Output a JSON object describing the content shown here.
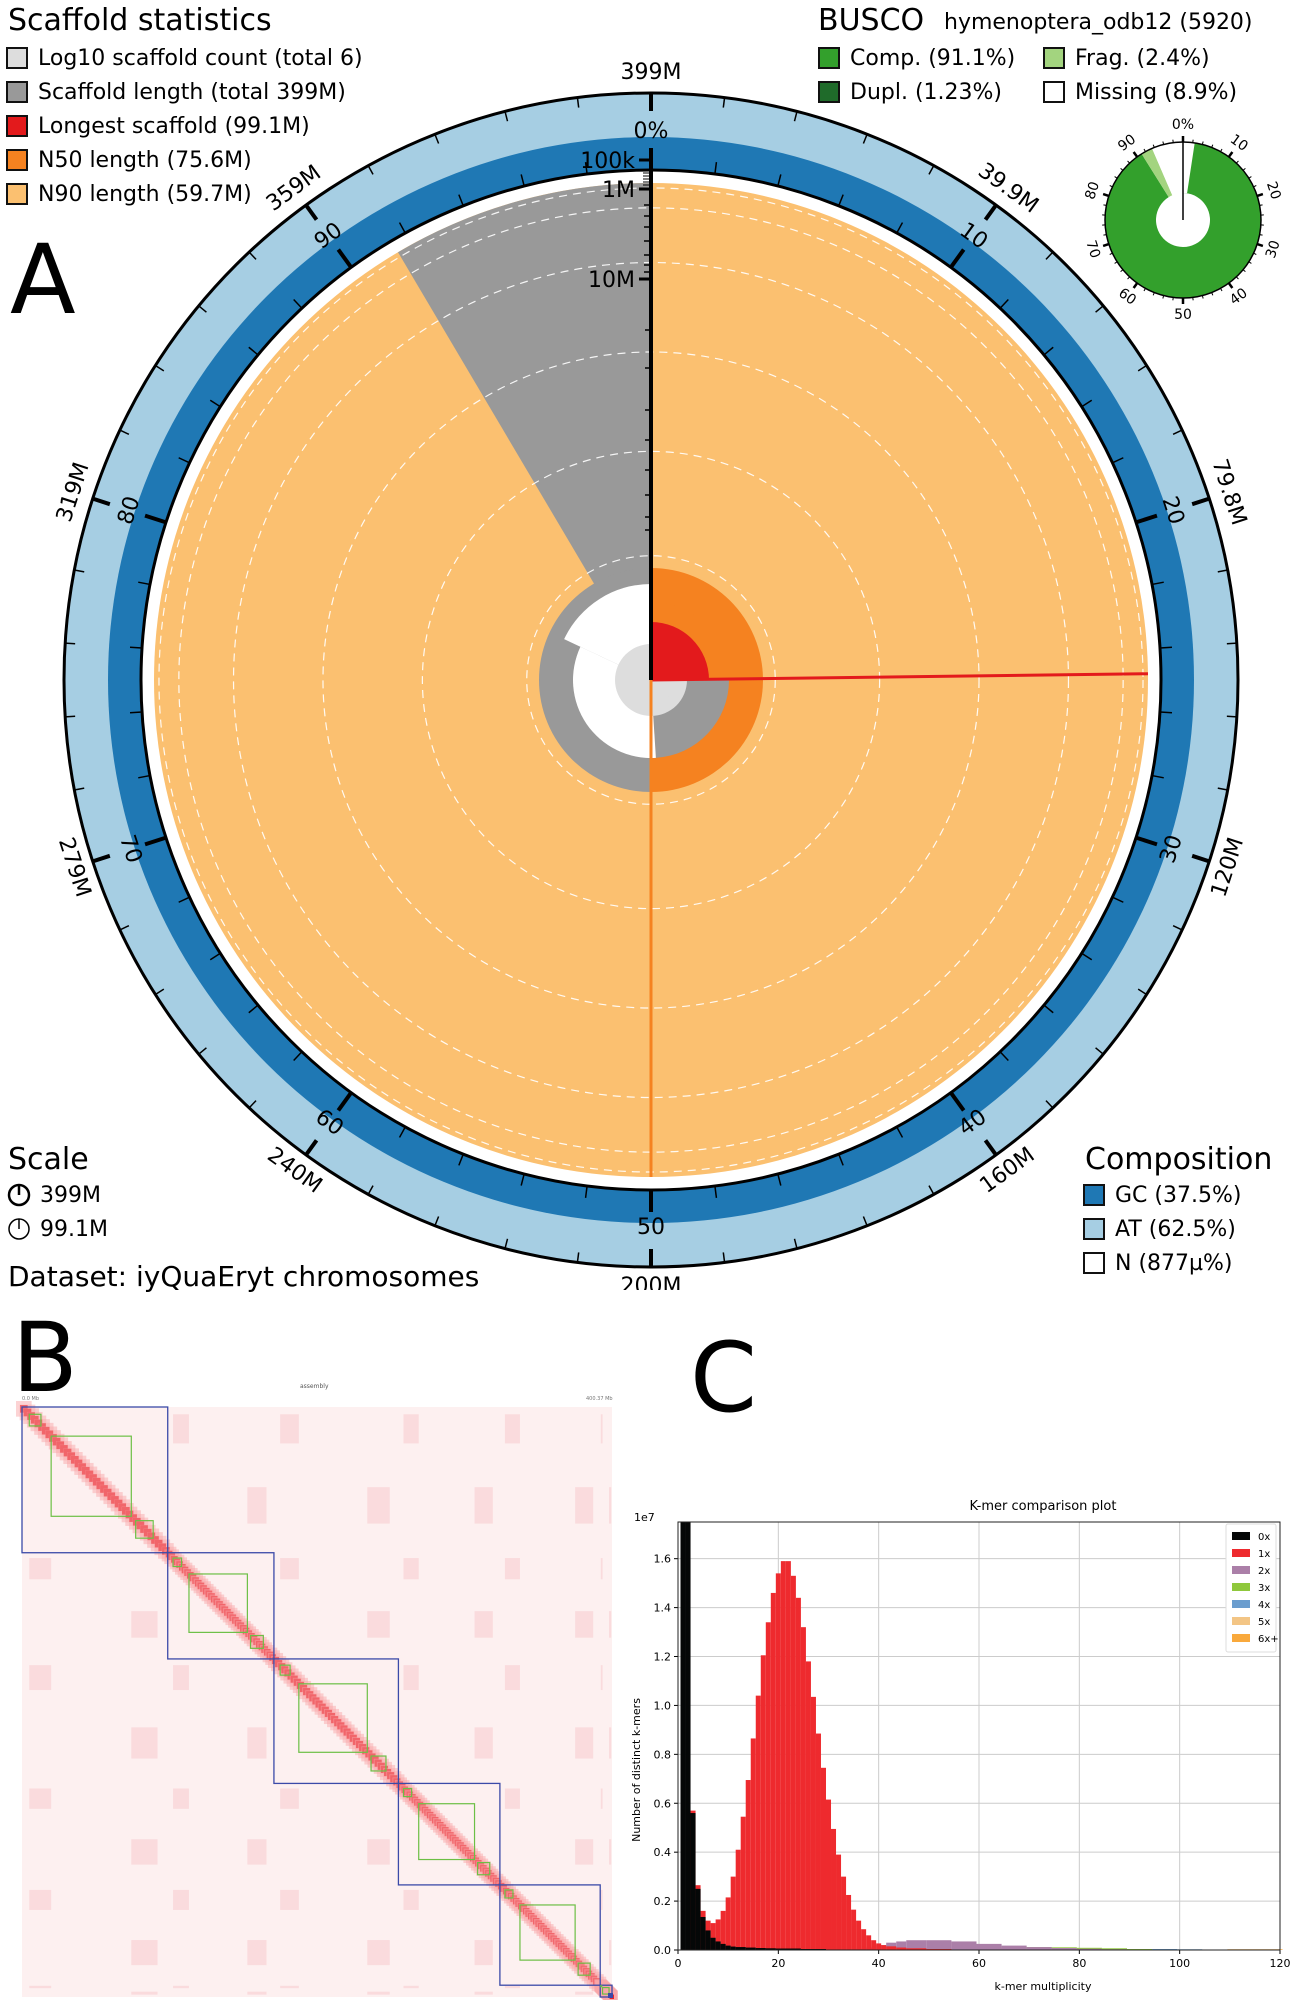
{
  "panels": {
    "a": "A",
    "b": "B",
    "c": "C"
  },
  "scaffold_legend": {
    "title": "Scaffold statistics",
    "items": [
      {
        "label": "Log10 scaffold count (total 6)",
        "color": "#dddddd"
      },
      {
        "label": "Scaffold length (total 399M)",
        "color": "#999999"
      },
      {
        "label": "Longest scaffold (99.1M)",
        "color": "#e31a1c"
      },
      {
        "label": "N50 length (75.6M)",
        "color": "#f58220"
      },
      {
        "label": "N90 length (59.7M)",
        "color": "#fbc070"
      }
    ]
  },
  "busco_legend": {
    "title": "BUSCO",
    "lineage": "hymenoptera_odb12 (5920)",
    "items": [
      {
        "label": "Comp. (91.1%)",
        "color": "#33a02c"
      },
      {
        "label": "Frag. (2.4%)",
        "color": "#a3d47f"
      },
      {
        "label": "Dupl. (1.23%)",
        "color": "#1f6b2a"
      },
      {
        "label": "Missing (8.9%)",
        "color": "#ffffff"
      }
    ]
  },
  "scale_legend": {
    "title": "Scale",
    "items": [
      {
        "label": "399M"
      },
      {
        "label": "99.1M"
      }
    ]
  },
  "dataset": "Dataset: iyQuaEryt chromosomes",
  "composition_legend": {
    "title": "Composition",
    "items": [
      {
        "label": "GC (37.5%)",
        "color": "#1f78b4"
      },
      {
        "label": "AT (62.5%)",
        "color": "#a6cee3"
      },
      {
        "label": "N (877µ%)",
        "color": "#ffffff"
      }
    ]
  },
  "hic_map": {
    "title": "assembly",
    "top_left_label": "0.0 Mb",
    "top_right_label": "400.37 Mb",
    "left_top_label": "0.0 Mb",
    "left_bottom_label": "400.37 Mb"
  },
  "chart_data": [
    {
      "type": "snail",
      "title": "Scaffold statistics snail plot",
      "total_length": "399M",
      "scaffold_count": 6,
      "longest_scaffold": "99.1M",
      "n50": "75.6M",
      "n90": "59.7M",
      "outer_ticks": [
        "399M",
        "39.9M",
        "79.8M",
        "120M",
        "160M",
        "200M",
        "240M",
        "279M",
        "319M",
        "359M"
      ],
      "percent_ticks": [
        "0%",
        "10",
        "20",
        "30",
        "40",
        "50",
        "60",
        "70",
        "80",
        "90"
      ],
      "radial_ticks": [
        "100k",
        "1M",
        "10M"
      ],
      "longest_fraction": 0.248,
      "n50_fraction": 0.5,
      "n90_fraction": 0.9,
      "gc_percent": 37.5,
      "at_percent": 62.5
    },
    {
      "type": "pie",
      "title": "BUSCO",
      "categories": [
        "Dupl.",
        "Comp.",
        "Frag.",
        "Missing"
      ],
      "values": [
        1.23,
        89.87,
        2.4,
        8.9
      ],
      "tick_labels": [
        "0%",
        "10",
        "20",
        "30",
        "40",
        "50",
        "60",
        "70",
        "80",
        "90"
      ]
    },
    {
      "type": "bar",
      "title": "K-mer comparison plot",
      "xlabel": "k-mer multiplicity",
      "ylabel": "Number of distinct k-mers",
      "y_multiplier": "1e7",
      "xlim": [
        0,
        120
      ],
      "ylim": [
        0,
        1.75
      ],
      "xticks": [
        "0",
        "20",
        "40",
        "60",
        "80",
        "100",
        "120"
      ],
      "yticks": [
        "0.0",
        "0.2",
        "0.4",
        "0.6",
        "0.8",
        "1.0",
        "1.2",
        "1.4",
        "1.6"
      ],
      "legend": [
        "0x",
        "1x",
        "2x",
        "3x",
        "4x",
        "5x",
        "6x+"
      ],
      "legend_position": "top-right",
      "colors": {
        "0x": "#050707",
        "1x": "#ee2a2e",
        "2x": "#ab7fa8",
        "3x": "#8fc83c",
        "4x": "#6b9dce",
        "5x": "#f3c585",
        "6x+": "#f9a93c"
      },
      "series": [
        {
          "name": "0x",
          "x": [
            1,
            2,
            3,
            4,
            5,
            6,
            7,
            8,
            9,
            10,
            11,
            12,
            14,
            16,
            18,
            20,
            25,
            30
          ],
          "values": [
            1.75,
            1.75,
            0.56,
            0.25,
            0.135,
            0.08,
            0.05,
            0.035,
            0.025,
            0.018,
            0.014,
            0.012,
            0.01,
            0.008,
            0.007,
            0.006,
            0.004,
            0.002
          ]
        },
        {
          "name": "1x",
          "x": [
            2,
            3,
            4,
            5,
            6,
            7,
            8,
            9,
            10,
            11,
            12,
            13,
            14,
            15,
            16,
            17,
            18,
            19,
            20,
            21,
            22,
            23,
            24,
            25,
            26,
            27,
            28,
            29,
            30,
            31,
            32,
            33,
            34,
            35,
            36,
            37,
            38,
            39,
            40,
            41,
            42,
            44,
            46,
            50,
            55,
            60
          ],
          "values": [
            0,
            0.57,
            0.265,
            0.16,
            0.12,
            0.11,
            0.125,
            0.16,
            0.215,
            0.3,
            0.41,
            0.545,
            0.695,
            0.865,
            1.04,
            1.205,
            1.34,
            1.46,
            1.54,
            1.59,
            1.59,
            1.53,
            1.44,
            1.32,
            1.18,
            1.035,
            0.885,
            0.745,
            0.615,
            0.495,
            0.39,
            0.3,
            0.225,
            0.165,
            0.12,
            0.085,
            0.06,
            0.04,
            0.027,
            0.02,
            0.015,
            0.01,
            0.007,
            0.004,
            0.002,
            0.001
          ]
        },
        {
          "name": "2x",
          "x": [
            36,
            38,
            40,
            42,
            44,
            46,
            50,
            55,
            60,
            65,
            70,
            75,
            80,
            85,
            90
          ],
          "values": [
            0.005,
            0.01,
            0.02,
            0.03,
            0.035,
            0.04,
            0.04,
            0.035,
            0.025,
            0.018,
            0.012,
            0.008,
            0.005,
            0.003,
            0.002
          ]
        },
        {
          "name": "3x",
          "x": [
            50,
            55,
            60,
            65,
            70,
            75,
            80,
            85,
            90,
            95
          ],
          "values": [
            0.002,
            0.005,
            0.008,
            0.01,
            0.012,
            0.011,
            0.009,
            0.007,
            0.004,
            0.002
          ]
        },
        {
          "name": "4x",
          "x": [
            75,
            80,
            85,
            90,
            95,
            100,
            105
          ],
          "values": [
            0.001,
            0.002,
            0.003,
            0.004,
            0.004,
            0.003,
            0.002
          ]
        },
        {
          "name": "5x",
          "x": [
            95,
            100,
            105,
            110
          ],
          "values": [
            0.001,
            0.002,
            0.002,
            0.001
          ]
        },
        {
          "name": "6x+",
          "x": [
            100,
            105,
            110,
            115,
            120
          ],
          "values": [
            0.001,
            0.002,
            0.003,
            0.003,
            0.003
          ]
        }
      ]
    }
  ]
}
